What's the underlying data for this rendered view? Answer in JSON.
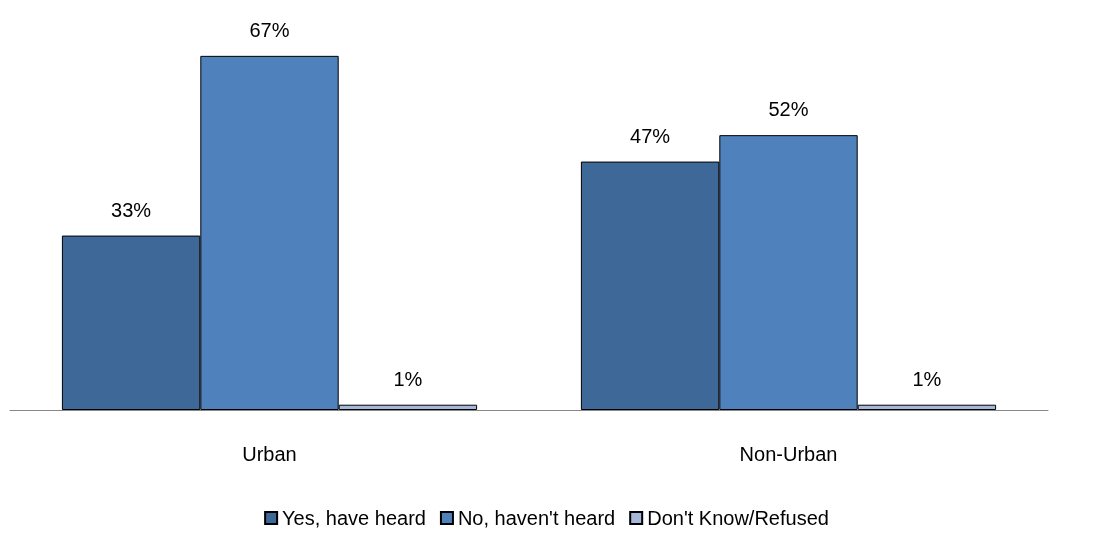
{
  "chart_data": {
    "type": "bar",
    "categories": [
      "Urban",
      "Non-Urban"
    ],
    "series": [
      {
        "name": "Yes, have heard",
        "color": "#3e6898",
        "values": [
          33,
          47
        ],
        "value_labels": [
          "33%",
          "47%"
        ]
      },
      {
        "name": "No, haven't heard",
        "color": "#4f81bd",
        "values": [
          67,
          52
        ],
        "value_labels": [
          "67%",
          "52%"
        ]
      },
      {
        "name": "Don't Know/Refused",
        "color": "#a5b8d9",
        "values": [
          1,
          1
        ],
        "value_labels": [
          "1%",
          "1%"
        ]
      }
    ],
    "legend": "bottom",
    "tick_labels": "x"
  }
}
